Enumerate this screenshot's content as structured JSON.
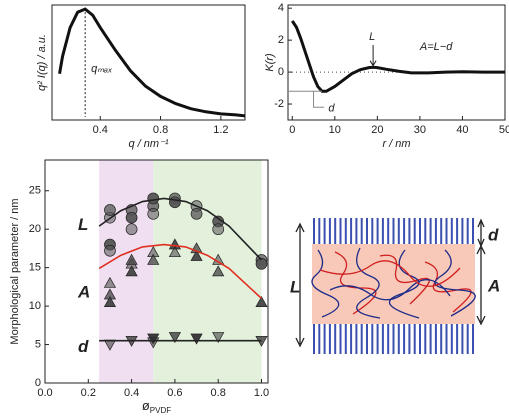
{
  "chart_data": [
    {
      "type": "line",
      "xlabel": "q / nm⁻¹",
      "ylabel": "q² I(q) / a.u.",
      "annotation": "qₘₐₓ",
      "x": [
        0.13,
        0.15,
        0.2,
        0.25,
        0.3,
        0.35,
        0.4,
        0.5,
        0.6,
        0.7,
        0.8,
        0.9,
        1.0,
        1.1,
        1.2,
        1.3,
        1.36
      ],
      "values": [
        0.45,
        0.62,
        0.9,
        1.05,
        1.08,
        1.02,
        0.9,
        0.68,
        0.48,
        0.33,
        0.23,
        0.16,
        0.11,
        0.08,
        0.06,
        0.05,
        0.04
      ],
      "color": "#111111",
      "xlim": [
        0.08,
        1.36
      ],
      "ylim": [
        0,
        1.12
      ],
      "xticks": [
        0.4,
        0.8,
        1.2
      ]
    },
    {
      "type": "line",
      "xlabel": "r / nm",
      "ylabel": "K(r)",
      "annotations": [
        "L",
        "d",
        "A=L−d"
      ],
      "x": [
        0,
        1,
        2,
        3,
        4,
        5,
        6,
        7,
        8,
        10,
        12,
        14,
        16,
        18,
        19,
        20,
        22,
        25,
        28,
        32,
        36,
        40,
        45,
        50
      ],
      "values": [
        3.2,
        2.8,
        2.1,
        1.3,
        0.5,
        -0.3,
        -0.9,
        -1.2,
        -1.2,
        -0.9,
        -0.5,
        -0.1,
        0.15,
        0.28,
        0.3,
        0.28,
        0.18,
        0.05,
        -0.05,
        -0.05,
        0,
        0.02,
        0,
        0
      ],
      "color": "#111111",
      "xlim": [
        -1,
        50
      ],
      "ylim": [
        -3,
        4.2
      ],
      "xticks": [
        0,
        10,
        20,
        30,
        40,
        50
      ],
      "yticks": [
        -2,
        0,
        2,
        4
      ]
    },
    {
      "type": "scatter",
      "xlabel": [
        "ø",
        "PVDF"
      ],
      "ylabel": "Morphological parameter / nm",
      "xlim": [
        0,
        1.03
      ],
      "ylim": [
        0,
        29
      ],
      "xticks": [
        {
          "value": 0,
          "label": "0.0"
        },
        0.2,
        0.4,
        0.6,
        0.8,
        {
          "value": 1,
          "label": "1.0"
        }
      ],
      "yticks": [
        0,
        5,
        10,
        15,
        20,
        25
      ],
      "regions": [
        {
          "x": [
            0.25,
            0.5
          ],
          "color": "#efdff0"
        },
        {
          "x": [
            0.5,
            1.0
          ],
          "color": "#e2f0dc"
        }
      ],
      "series": [
        {
          "name": "L",
          "marker": "circle",
          "color": "#555555",
          "x": [
            0.3,
            0.3,
            0.3,
            0.3,
            0.4,
            0.4,
            0.4,
            0.5,
            0.5,
            0.5,
            0.6,
            0.6,
            0.7,
            0.7,
            0.8,
            0.8,
            1.0,
            1.0
          ],
          "values": [
            21.5,
            22.5,
            18,
            17.2,
            22.5,
            21.5,
            20,
            23,
            24,
            22,
            24,
            23.5,
            23,
            22,
            21,
            20,
            16,
            15.5
          ],
          "fit": {
            "color": "#222222",
            "x": [
              0.25,
              0.35,
              0.45,
              0.55,
              0.65,
              0.75,
              0.85,
              1.0
            ],
            "values": [
              20.4,
              22.4,
              23.6,
              24,
              23.6,
              22.4,
              20.4,
              16
            ]
          }
        },
        {
          "name": "A",
          "marker": "triangle-up",
          "color": "#444444",
          "x": [
            0.3,
            0.3,
            0.3,
            0.4,
            0.4,
            0.4,
            0.5,
            0.5,
            0.6,
            0.6,
            0.7,
            0.7,
            0.8,
            0.8,
            1.0
          ],
          "values": [
            13,
            11.5,
            10.5,
            15.5,
            16,
            14.5,
            17,
            16,
            18,
            17,
            17.5,
            16.5,
            16,
            14.5,
            10.5
          ],
          "fit": {
            "color": "#e03020",
            "x": [
              0.25,
              0.35,
              0.45,
              0.55,
              0.65,
              0.75,
              0.85,
              1.0
            ],
            "values": [
              14.9,
              16.6,
              17.7,
              18,
              17.7,
              16.6,
              14.9,
              11
            ]
          }
        },
        {
          "name": "d",
          "marker": "triangle-down",
          "color": "#333333",
          "x": [
            0.3,
            0.4,
            0.5,
            0.5,
            0.6,
            0.7,
            0.8,
            1.0
          ],
          "values": [
            5,
            5.5,
            5.8,
            5.3,
            6,
            5.8,
            6,
            5.5
          ],
          "fit": {
            "color": "#222222",
            "x": [
              0.25,
              1.0
            ],
            "values": [
              5.5,
              5.5
            ]
          }
        }
      ]
    }
  ],
  "diagram": {
    "labels": {
      "L": "L",
      "A": "A",
      "d": "d"
    }
  }
}
